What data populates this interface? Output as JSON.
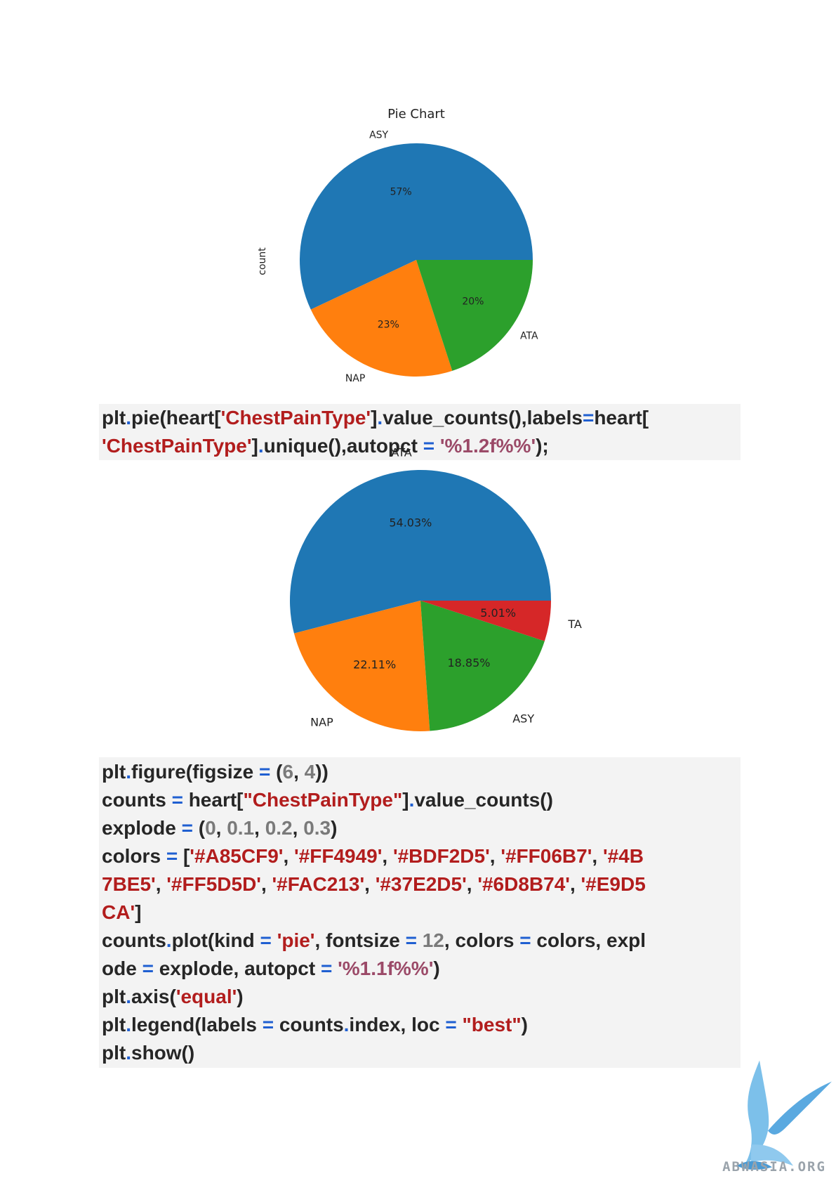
{
  "chart_data": [
    {
      "type": "pie",
      "title": "Pie Chart",
      "ylabel": "count",
      "labels": [
        "ASY",
        "NAP",
        "ATA"
      ],
      "values": [
        57,
        23,
        20
      ],
      "value_labels": [
        "57%",
        "23%",
        "20%"
      ],
      "colors": [
        "#1f77b4",
        "#ff7f0e",
        "#2ca02c"
      ],
      "start_angle": 0,
      "direction": "counterclockwise"
    },
    {
      "type": "pie",
      "title": "",
      "labels": [
        "ATA",
        "NAP",
        "ASY",
        "TA"
      ],
      "values": [
        54.03,
        22.11,
        18.85,
        5.01
      ],
      "value_labels": [
        "54.03%",
        "22.11%",
        "18.85%",
        "5.01%"
      ],
      "colors": [
        "#1f77b4",
        "#ff7f0e",
        "#2ca02c",
        "#d62728"
      ],
      "start_angle": 0,
      "direction": "counterclockwise"
    }
  ],
  "code_blocks": [
    {
      "lines": [
        [
          [
            "plt",
            "plain"
          ],
          [
            ".",
            "op"
          ],
          [
            "pie(heart[",
            "plain"
          ],
          [
            "'ChestPainType'",
            "str"
          ],
          [
            "]",
            "plain"
          ],
          [
            ".",
            "op"
          ],
          [
            "value_counts(),labels",
            "plain"
          ],
          [
            "=",
            "op"
          ],
          [
            "heart[",
            "plain"
          ]
        ],
        [
          [
            "'ChestPainType'",
            "str"
          ],
          [
            "]",
            "plain"
          ],
          [
            ".",
            "op"
          ],
          [
            "unique(),autopct ",
            "plain"
          ],
          [
            "=",
            "op"
          ],
          [
            " ",
            "plain"
          ],
          [
            "'%1.2f%%'",
            "fmt"
          ],
          [
            ");",
            "plain"
          ]
        ]
      ]
    },
    {
      "lines": [
        [
          [
            "plt",
            "plain"
          ],
          [
            ".",
            "op"
          ],
          [
            "figure(figsize ",
            "plain"
          ],
          [
            "=",
            "op"
          ],
          [
            " (",
            "plain"
          ],
          [
            "6",
            "num"
          ],
          [
            ", ",
            "plain"
          ],
          [
            "4",
            "num"
          ],
          [
            "))",
            "plain"
          ]
        ],
        [
          [
            "counts ",
            "plain"
          ],
          [
            "=",
            "op"
          ],
          [
            " heart[",
            "plain"
          ],
          [
            "\"ChestPainType\"",
            "str"
          ],
          [
            "]",
            "plain"
          ],
          [
            ".",
            "op"
          ],
          [
            "value_counts()",
            "plain"
          ]
        ],
        [
          [
            "explode ",
            "plain"
          ],
          [
            "=",
            "op"
          ],
          [
            " (",
            "plain"
          ],
          [
            "0",
            "num"
          ],
          [
            ", ",
            "plain"
          ],
          [
            "0.1",
            "num"
          ],
          [
            ", ",
            "plain"
          ],
          [
            "0.2",
            "num"
          ],
          [
            ", ",
            "plain"
          ],
          [
            "0.3",
            "num"
          ],
          [
            ")",
            "plain"
          ]
        ],
        [
          [
            "colors ",
            "plain"
          ],
          [
            "=",
            "op"
          ],
          [
            " [",
            "plain"
          ],
          [
            "'#A85CF9'",
            "str"
          ],
          [
            ", ",
            "plain"
          ],
          [
            "'#FF4949'",
            "str"
          ],
          [
            ", ",
            "plain"
          ],
          [
            "'#BDF2D5'",
            "str"
          ],
          [
            ", ",
            "plain"
          ],
          [
            "'#FF06B7'",
            "str"
          ],
          [
            ", ",
            "plain"
          ],
          [
            "'#4B",
            "str"
          ]
        ],
        [
          [
            "7BE5'",
            "str"
          ],
          [
            ", ",
            "plain"
          ],
          [
            "'#FF5D5D'",
            "str"
          ],
          [
            ", ",
            "plain"
          ],
          [
            "'#FAC213'",
            "str"
          ],
          [
            ", ",
            "plain"
          ],
          [
            "'#37E2D5'",
            "str"
          ],
          [
            ", ",
            "plain"
          ],
          [
            "'#6D8B74'",
            "str"
          ],
          [
            ", ",
            "plain"
          ],
          [
            "'#E9D5",
            "str"
          ]
        ],
        [
          [
            "CA'",
            "str"
          ],
          [
            "]",
            "plain"
          ]
        ],
        [
          [
            "counts",
            "plain"
          ],
          [
            ".",
            "op"
          ],
          [
            "plot(kind ",
            "plain"
          ],
          [
            "=",
            "op"
          ],
          [
            " ",
            "plain"
          ],
          [
            "'pie'",
            "str"
          ],
          [
            ", fontsize ",
            "plain"
          ],
          [
            "=",
            "op"
          ],
          [
            " ",
            "plain"
          ],
          [
            "12",
            "num"
          ],
          [
            ", colors ",
            "plain"
          ],
          [
            "=",
            "op"
          ],
          [
            " colors, expl",
            "plain"
          ]
        ],
        [
          [
            "ode ",
            "plain"
          ],
          [
            "=",
            "op"
          ],
          [
            " explode, autopct ",
            "plain"
          ],
          [
            "=",
            "op"
          ],
          [
            " ",
            "plain"
          ],
          [
            "'%1.1f%%'",
            "fmt"
          ],
          [
            ")",
            "plain"
          ]
        ],
        [
          [
            "plt",
            "plain"
          ],
          [
            ".",
            "op"
          ],
          [
            "axis(",
            "plain"
          ],
          [
            "'equal'",
            "str"
          ],
          [
            ")",
            "plain"
          ]
        ],
        [
          [
            "plt",
            "plain"
          ],
          [
            ".",
            "op"
          ],
          [
            "legend(labels ",
            "plain"
          ],
          [
            "=",
            "op"
          ],
          [
            " counts",
            "plain"
          ],
          [
            ".",
            "op"
          ],
          [
            "index, loc ",
            "plain"
          ],
          [
            "=",
            "op"
          ],
          [
            " ",
            "plain"
          ],
          [
            "\"best\"",
            "str"
          ],
          [
            ")",
            "plain"
          ]
        ],
        [
          [
            "plt",
            "plain"
          ],
          [
            ".",
            "op"
          ],
          [
            "show()",
            "plain"
          ]
        ]
      ]
    }
  ],
  "logo": {
    "text": "ABWASIA.ORG",
    "color": "#5aa9e0"
  }
}
